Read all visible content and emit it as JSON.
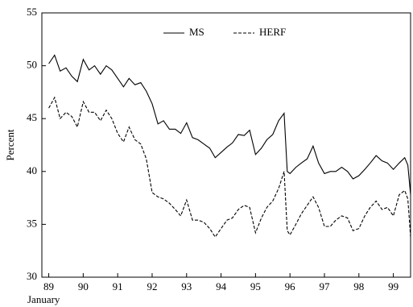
{
  "chart_data": {
    "type": "line",
    "y_label": "Percent",
    "x_note": "January",
    "x": [
      89.0,
      89.17,
      89.33,
      89.5,
      89.67,
      89.83,
      90.0,
      90.17,
      90.33,
      90.5,
      90.67,
      90.83,
      91.0,
      91.17,
      91.33,
      91.5,
      91.67,
      91.83,
      92.0,
      92.17,
      92.33,
      92.5,
      92.67,
      92.83,
      93.0,
      93.17,
      93.33,
      93.5,
      93.67,
      93.83,
      94.0,
      94.17,
      94.33,
      94.5,
      94.67,
      94.83,
      95.0,
      95.17,
      95.33,
      95.5,
      95.67,
      95.83,
      95.92,
      96.0,
      96.17,
      96.33,
      96.5,
      96.67,
      96.83,
      97.0,
      97.17,
      97.33,
      97.5,
      97.67,
      97.83,
      98.0,
      98.17,
      98.33,
      98.5,
      98.67,
      98.83,
      99.0,
      99.17,
      99.33,
      99.42,
      99.5
    ],
    "series": [
      {
        "name": "MS",
        "color": "#000000",
        "dash": false,
        "values": [
          50.2,
          51.0,
          49.5,
          49.8,
          49.0,
          48.5,
          50.6,
          49.6,
          50.0,
          49.2,
          50.0,
          49.6,
          48.8,
          48.0,
          48.8,
          48.2,
          48.4,
          47.6,
          46.4,
          44.5,
          44.8,
          44.0,
          44.0,
          43.6,
          44.6,
          43.2,
          43.0,
          42.6,
          42.2,
          41.3,
          41.8,
          42.3,
          42.7,
          43.5,
          43.4,
          43.9,
          41.6,
          42.2,
          43.0,
          43.5,
          44.8,
          45.5,
          40.0,
          39.8,
          40.4,
          40.8,
          41.2,
          42.4,
          40.8,
          39.8,
          40.0,
          40.0,
          40.4,
          40.0,
          39.3,
          39.6,
          40.2,
          40.8,
          41.5,
          41.0,
          40.8,
          40.2,
          40.8,
          41.3,
          40.6,
          37.8
        ]
      },
      {
        "name": "HERF",
        "color": "#000000",
        "dash": true,
        "values": [
          46.0,
          47.0,
          45.0,
          45.6,
          45.2,
          44.2,
          46.6,
          45.6,
          45.6,
          44.8,
          45.8,
          45.0,
          43.6,
          42.8,
          44.2,
          43.0,
          42.6,
          41.2,
          38.0,
          37.6,
          37.4,
          37.0,
          36.4,
          35.8,
          37.3,
          35.4,
          35.4,
          35.2,
          34.6,
          33.8,
          34.6,
          35.4,
          35.6,
          36.4,
          36.8,
          36.6,
          34.2,
          35.6,
          36.6,
          37.2,
          38.4,
          40.0,
          34.4,
          34.0,
          35.0,
          36.0,
          36.8,
          37.6,
          36.6,
          34.8,
          34.8,
          35.4,
          35.8,
          35.6,
          34.4,
          34.6,
          35.8,
          36.6,
          37.2,
          36.4,
          36.6,
          35.8,
          37.8,
          38.2,
          37.4,
          33.8
        ]
      }
    ],
    "xlim": [
      88.8,
      99.5
    ],
    "xticks": [
      89,
      90,
      91,
      92,
      93,
      94,
      95,
      96,
      97,
      98,
      99
    ],
    "ylim": [
      30,
      55
    ],
    "yticks": [
      30,
      35,
      40,
      45,
      50,
      55
    ]
  }
}
